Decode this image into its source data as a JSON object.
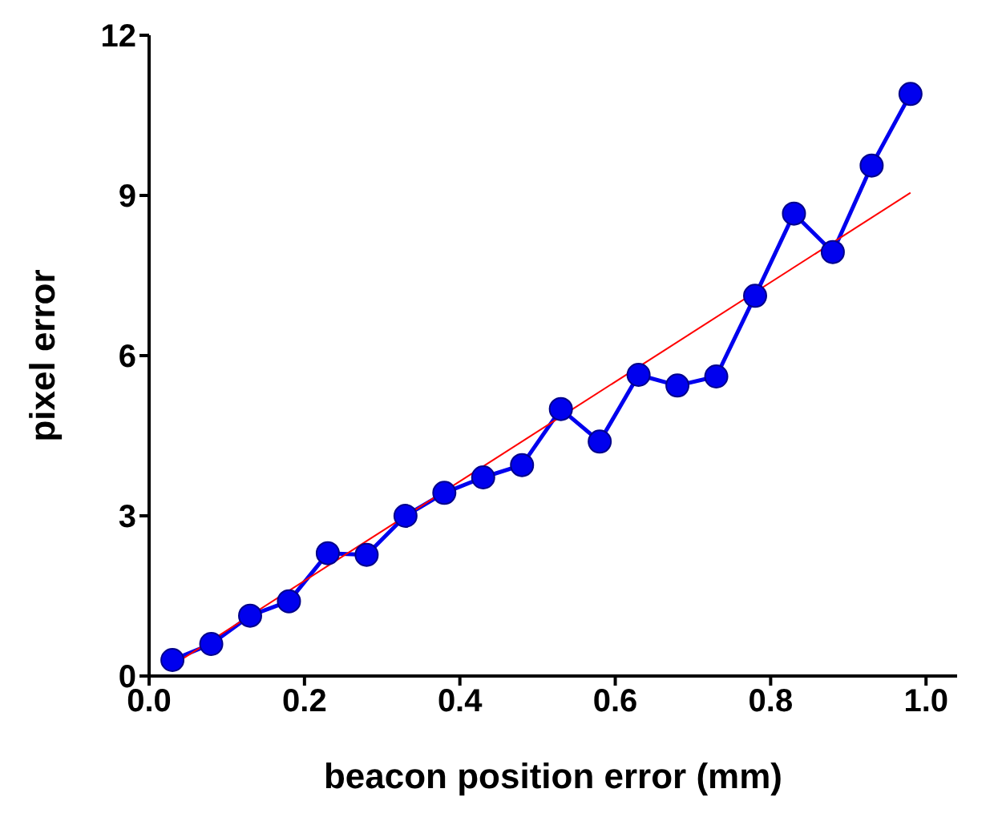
{
  "chart_data": {
    "type": "line",
    "xlabel": "beacon position error (mm)",
    "ylabel": "pixel error",
    "xlim": [
      0,
      1.04
    ],
    "xticks": [
      {
        "value": 0,
        "label": "0.0"
      },
      {
        "value": 0.2,
        "label": "0.2"
      },
      {
        "value": 0.4,
        "label": "0.4"
      },
      {
        "value": 0.6,
        "label": "0.6"
      },
      {
        "value": 0.8,
        "label": "0.8"
      },
      {
        "value": 1,
        "label": "1.0"
      }
    ],
    "ylim": [
      0,
      12
    ],
    "yticks": [
      0,
      3,
      6,
      9,
      12
    ],
    "marker": "circle",
    "line_style": "solid",
    "series": [
      {
        "color": "#0000ee",
        "x": [
          0.03,
          0.08,
          0.13,
          0.18,
          0.23,
          0.28,
          0.33,
          0.38,
          0.43,
          0.48,
          0.53,
          0.58,
          0.63,
          0.68,
          0.73,
          0.78,
          0.83,
          0.88,
          0.93,
          0.98
        ],
        "values": [
          0.3,
          0.6,
          1.13,
          1.4,
          2.3,
          2.27,
          3.0,
          3.43,
          3.72,
          3.95,
          5.0,
          4.39,
          5.64,
          5.44,
          5.61,
          7.12,
          8.66,
          7.94,
          9.56,
          10.9
        ]
      },
      {
        "color": "#ff0000",
        "marker": "none",
        "x": [
          0.03,
          0.98
        ],
        "values": [
          0.2,
          9.05
        ]
      }
    ]
  }
}
